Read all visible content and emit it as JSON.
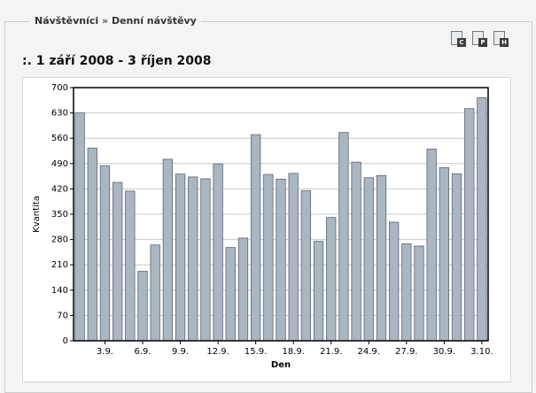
{
  "breadcrumb": {
    "parent": "Návštěvníci",
    "separator": "»",
    "current": "Denní návštěvy"
  },
  "toolbar": {
    "icons": [
      {
        "name": "export-c-icon",
        "letter": "C"
      },
      {
        "name": "export-p-icon",
        "letter": "P"
      },
      {
        "name": "export-h-icon",
        "letter": "H"
      }
    ]
  },
  "header": {
    "title": ":. 1 září 2008 - 3 říjen 2008"
  },
  "chart_data": {
    "type": "bar",
    "xlabel": "Den",
    "ylabel": "Kvantita",
    "ylim": [
      0,
      700
    ],
    "yticks": [
      0,
      70,
      140,
      210,
      280,
      350,
      420,
      490,
      560,
      630,
      700
    ],
    "x_tick_labels": [
      "3.9.",
      "6.9.",
      "9.9.",
      "12.9.",
      "15.9.",
      "18.9.",
      "21.9.",
      "24.9.",
      "27.9.",
      "30.9.",
      "3.10."
    ],
    "x_tick_label_positions": [
      3,
      6,
      9,
      12,
      15,
      18,
      21,
      24,
      27,
      30,
      33
    ],
    "categories": [
      "1.9.",
      "2.9.",
      "3.9.",
      "4.9.",
      "5.9.",
      "6.9.",
      "7.9.",
      "8.9.",
      "9.9.",
      "10.9.",
      "11.9.",
      "12.9.",
      "13.9.",
      "14.9.",
      "15.9.",
      "16.9.",
      "17.9.",
      "18.9.",
      "19.9.",
      "20.9.",
      "21.9.",
      "22.9.",
      "23.9.",
      "24.9.",
      "25.9.",
      "26.9.",
      "27.9.",
      "28.9.",
      "29.9.",
      "30.9.",
      "1.10.",
      "2.10.",
      "3.10."
    ],
    "values": [
      630,
      533,
      484,
      438,
      414,
      192,
      265,
      502,
      461,
      453,
      448,
      489,
      258,
      284,
      570,
      460,
      447,
      463,
      415,
      275,
      341,
      576,
      494,
      451,
      457,
      328,
      268,
      262,
      530,
      479,
      462,
      642,
      672
    ],
    "bar_color": "#aab6c2",
    "grid": true
  }
}
